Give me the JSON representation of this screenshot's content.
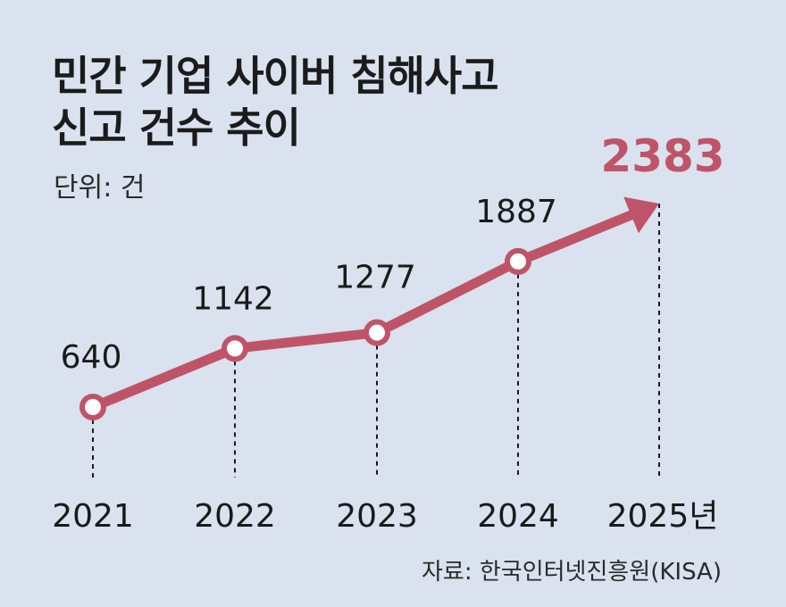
{
  "title_line1": "민간 기업 사이버 침해사고",
  "title_line2": "신고 건수 추이",
  "unit": "단위: 건",
  "source": "자료: 한국인터넷진흥원(KISA)",
  "chart_data": {
    "type": "line",
    "categories": [
      "2021",
      "2022",
      "2023",
      "2024",
      "2025년"
    ],
    "values": [
      640,
      1142,
      1277,
      1887,
      2383
    ],
    "data_labels": [
      "640",
      "1142",
      "1277",
      "1887",
      "2383"
    ],
    "highlight_index": 4,
    "ylim": [
      0,
      2800
    ],
    "grid": false,
    "legend": "none",
    "colors": {
      "line": "#bf5468",
      "highlight_label": "#bf5468",
      "marker_fill": "#ffffff",
      "drop_line": "#1a1a1a",
      "background": "#d9e2ee"
    }
  }
}
